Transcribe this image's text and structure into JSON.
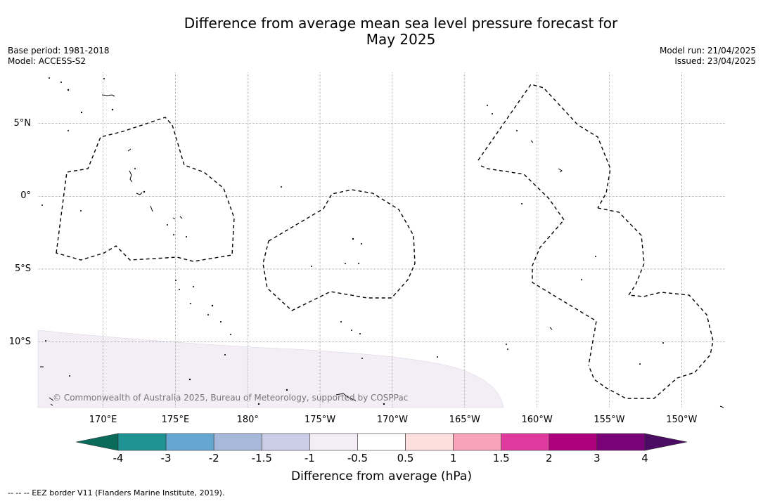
{
  "title_line1": "Difference from average mean sea level pressure forecast for",
  "title_line2": "May 2025",
  "meta_left": [
    "Base period: 1981-2018",
    "Model: ACCESS-S2"
  ],
  "meta_right": [
    "Model run: 21/04/2025",
    "Issued: 23/04/2025"
  ],
  "lat_labels": [
    "5°N",
    "0°",
    "5°S",
    "10°S"
  ],
  "lat_values": [
    5,
    0,
    -5,
    -10
  ],
  "lon_labels": [
    "170°E",
    "175°E",
    "180°",
    "175°W",
    "170°W",
    "165°W",
    "160°W",
    "155°W",
    "150°W"
  ],
  "lon_values": [
    170,
    175,
    180,
    185,
    190,
    195,
    200,
    205,
    210
  ],
  "map_extent": {
    "lon_min": 165.5,
    "lon_max": 213.0,
    "lat_min": -14.5,
    "lat_max": 8.5
  },
  "copyright": "© Commonwealth of Australia 2025, Bureau of Meteorology, supported by COSPPac",
  "colorbar": {
    "ticks": [
      "-4",
      "-3",
      "-2",
      "-1.5",
      "-1",
      "-0.5",
      "0.5",
      "1",
      "1.5",
      "2",
      "3",
      "4"
    ],
    "low_extend_color": "#0b6b5a",
    "high_extend_color": "#4a0d63",
    "colors": [
      "#1f9294",
      "#66a7d2",
      "#a6b9da",
      "#cbcce6",
      "#f3eef6",
      "#ffffff",
      "#fde0dd",
      "#f9a3b8",
      "#df3a9d",
      "#ae017e",
      "#7a0177"
    ],
    "label": "Difference from average (hPa)"
  },
  "shading": {
    "level": "-1 to -0.5",
    "color": "#f3eef6"
  },
  "legend_note": "--  --  -- EEZ border V11 (Flanders Marine Institute, 2019).",
  "colors": {
    "eez_line": "#000000",
    "gridline": "#888888",
    "land": "#000000"
  }
}
